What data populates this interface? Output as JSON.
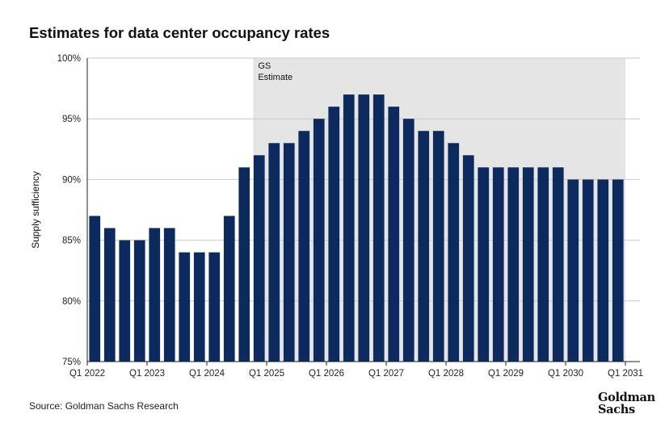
{
  "chart_data": {
    "type": "bar",
    "title": "Estimates for data center occupancy rates",
    "ylabel": "Supply sufficiency",
    "xlabel": "",
    "ylim": [
      75,
      100
    ],
    "yticks": [
      "75%",
      "80%",
      "85%",
      "90%",
      "95%",
      "100%"
    ],
    "ytick_values": [
      75,
      80,
      85,
      90,
      95,
      100
    ],
    "xtick_labels": [
      "Q1 2022",
      "Q1 2023",
      "Q1 2024",
      "Q1 2025",
      "Q1 2026",
      "Q1 2027",
      "Q1 2028",
      "Q1 2029",
      "Q1 2030",
      "Q1 2031"
    ],
    "categories": [
      "Q1 2022",
      "Q2 2022",
      "Q3 2022",
      "Q4 2022",
      "Q1 2023",
      "Q2 2023",
      "Q3 2023",
      "Q4 2023",
      "Q1 2024",
      "Q2 2024",
      "Q3 2024",
      "Q4 2024",
      "Q1 2025",
      "Q2 2025",
      "Q3 2025",
      "Q4 2025",
      "Q1 2026",
      "Q2 2026",
      "Q3 2026",
      "Q4 2026",
      "Q1 2027",
      "Q2 2027",
      "Q3 2027",
      "Q4 2027",
      "Q1 2028",
      "Q2 2028",
      "Q3 2028",
      "Q4 2028",
      "Q1 2029",
      "Q2 2029",
      "Q3 2029",
      "Q4 2029",
      "Q1 2030",
      "Q2 2030",
      "Q3 2030",
      "Q4 2030"
    ],
    "values": [
      87,
      86,
      85,
      85,
      86,
      86,
      84,
      84,
      84,
      87,
      91,
      92,
      93,
      93,
      94,
      95,
      96,
      97,
      97,
      97,
      96,
      95,
      94,
      94,
      93,
      92,
      91,
      91,
      91,
      91,
      91,
      91,
      90,
      90,
      90,
      90
    ],
    "estimate_start_index": 11,
    "estimate_label": [
      "GS",
      "Estimate"
    ],
    "bar_color": "#0c2a5e",
    "estimate_shade_color": "#e5e5e5"
  },
  "source": "Source: Goldman Sachs Research",
  "logo": {
    "line1": "Goldman",
    "line2": "Sachs"
  }
}
